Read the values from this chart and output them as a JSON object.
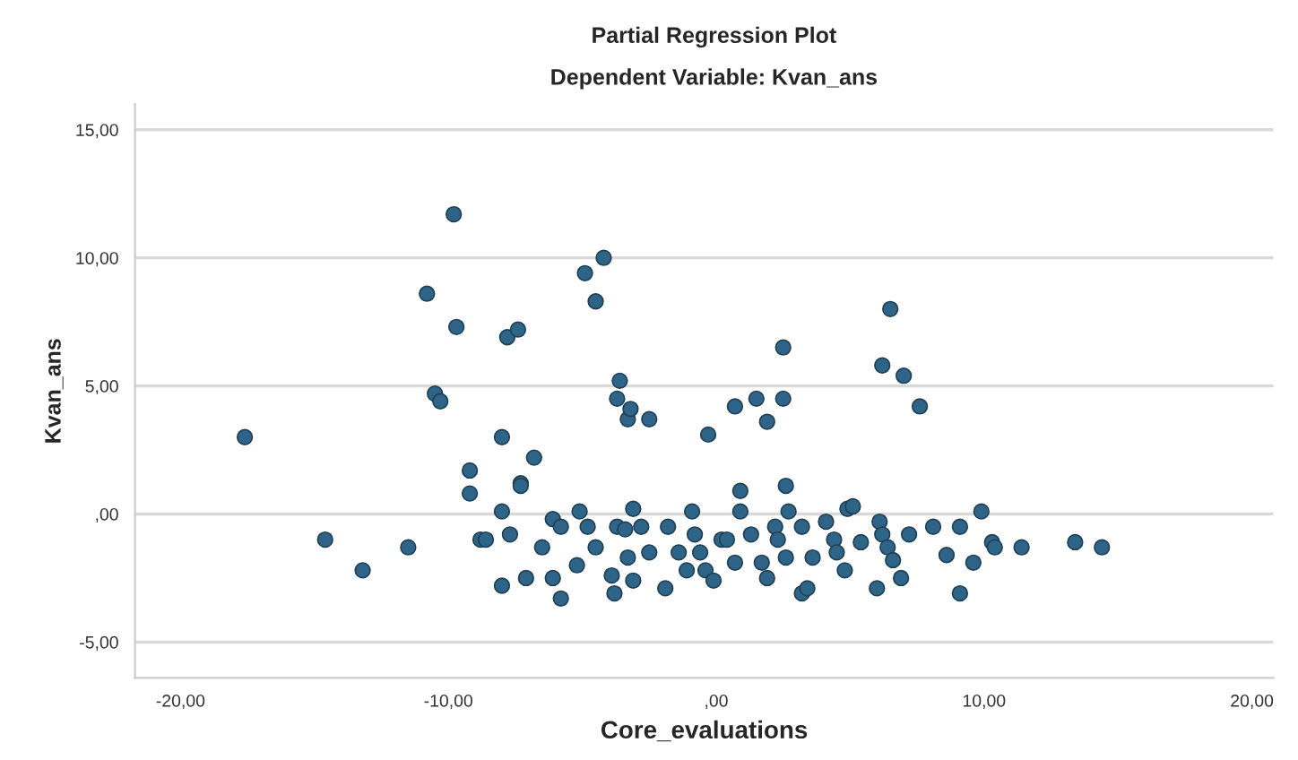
{
  "chart_data": {
    "type": "scatter",
    "title": "Partial Regression Plot",
    "subtitle": "Dependent Variable: Kvan_ans",
    "xlabel": "Core_evaluations",
    "ylabel": "Kvan_ans",
    "xlim": [
      -21.7,
      20.8
    ],
    "ylim": [
      -6.4,
      16.0
    ],
    "xticks": [
      {
        "value": -20,
        "label": "-20,00"
      },
      {
        "value": -10,
        "label": "-10,00"
      },
      {
        "value": 0,
        "label": ",00"
      },
      {
        "value": 10,
        "label": "10,00"
      },
      {
        "value": 20,
        "label": "20,00"
      }
    ],
    "yticks": [
      {
        "value": -5,
        "label": "-5,00"
      },
      {
        "value": 0,
        "label": ",00"
      },
      {
        "value": 5,
        "label": "5,00"
      },
      {
        "value": 10,
        "label": "10,00"
      },
      {
        "value": 15,
        "label": "15,00"
      }
    ],
    "grid": "y",
    "marker": "circle",
    "series": [
      {
        "color": "#2e6488",
        "x": [
          -17.6,
          -14.6,
          -13.2,
          -11.5,
          -10.8,
          -10.5,
          -10.3,
          -9.8,
          -9.7,
          -9.2,
          -8.8,
          -8.0,
          -7.8,
          -7.4,
          -7.3,
          -6.8,
          -4.9,
          -4.2,
          -4.5,
          -3.6,
          -3.7,
          -3.3,
          -3.2,
          -2.5,
          -0.3,
          0.7,
          1.5,
          1.9,
          2.5,
          2.5,
          6.2,
          6.5,
          7.0,
          7.6,
          -7.1,
          -6.1,
          -5.8,
          -6.5,
          -6.1,
          -5.8,
          -5.1,
          -4.8,
          -5.2,
          -4.5,
          -3.9,
          -3.8,
          -3.7,
          -3.4,
          -3.3,
          -3.1,
          -2.8,
          -3.1,
          -2.5,
          -1.9,
          -1.8,
          -1.4,
          -1.1,
          -0.9,
          -0.8,
          -0.6,
          -0.4,
          -0.1,
          0.2,
          0.4,
          0.7,
          0.9,
          0.9,
          1.3,
          1.7,
          1.9,
          2.2,
          2.3,
          2.6,
          2.7,
          2.6,
          3.2,
          3.2,
          3.4,
          3.6,
          4.1,
          4.4,
          4.5,
          4.8,
          4.9,
          5.1,
          5.4,
          6.1,
          6.2,
          6.4,
          6.6,
          6.0,
          6.9,
          7.2,
          8.1,
          8.6,
          9.1,
          9.1,
          9.6,
          9.9,
          10.3,
          10.4,
          11.4,
          13.4,
          14.4,
          -9.2,
          -8.0,
          -8.6,
          -7.7,
          -8.0,
          -7.3
        ],
        "values": [
          3.0,
          -1.0,
          -2.2,
          -1.3,
          8.6,
          4.7,
          4.4,
          11.7,
          7.3,
          1.7,
          -1.0,
          3.0,
          6.9,
          7.2,
          1.2,
          2.2,
          9.4,
          10.0,
          8.3,
          5.2,
          4.5,
          3.7,
          4.1,
          3.7,
          3.1,
          4.2,
          4.5,
          3.6,
          6.5,
          4.5,
          5.8,
          8.0,
          5.4,
          4.2,
          -2.5,
          -2.5,
          -3.3,
          -1.3,
          -0.2,
          -0.5,
          0.1,
          -0.5,
          -2.0,
          -1.3,
          -2.4,
          -3.1,
          -0.5,
          -0.6,
          -1.7,
          0.2,
          -0.5,
          -2.6,
          -1.5,
          -2.9,
          -0.5,
          -1.5,
          -2.2,
          0.1,
          -0.8,
          -1.5,
          -2.2,
          -2.6,
          -1.0,
          -1.0,
          -1.9,
          0.9,
          0.1,
          -0.8,
          -1.9,
          -2.5,
          -0.5,
          -1.0,
          1.1,
          0.1,
          -1.7,
          -0.5,
          -3.1,
          -2.9,
          -1.7,
          -0.3,
          -1.0,
          -1.5,
          -2.2,
          0.2,
          0.3,
          -1.1,
          -0.3,
          -0.8,
          -1.3,
          -1.8,
          -2.9,
          -2.5,
          -0.8,
          -0.5,
          -1.6,
          -0.5,
          -3.1,
          -1.9,
          0.1,
          -1.1,
          -1.3,
          -1.3,
          -1.1,
          -1.3,
          0.8,
          0.1,
          -1.0,
          -0.8,
          -2.8,
          1.1
        ]
      }
    ]
  }
}
